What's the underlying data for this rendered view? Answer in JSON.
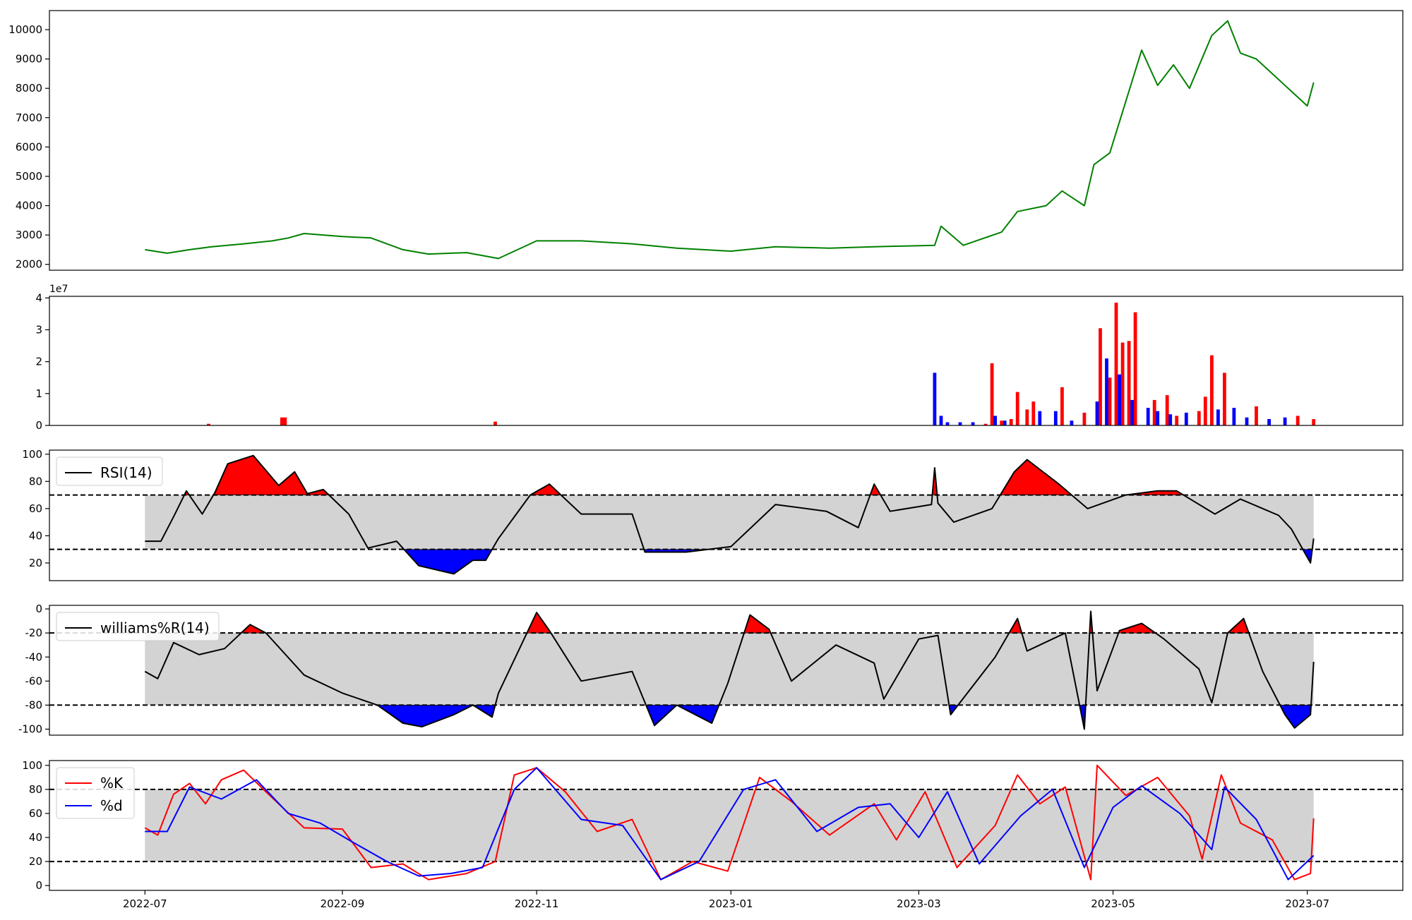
{
  "chart_data": [
    {
      "type": "line",
      "panel": "price",
      "x_range": [
        "2022-06-01",
        "2023-07-31"
      ],
      "ylim": [
        1800,
        10650
      ],
      "yticks": [
        2000,
        3000,
        4000,
        5000,
        6000,
        7000,
        8000,
        9000,
        10000
      ],
      "series": [
        {
          "color": "#008000",
          "x": [
            "2022-07-01",
            "2022-07-08",
            "2022-07-15",
            "2022-07-22",
            "2022-08-01",
            "2022-08-10",
            "2022-08-15",
            "2022-08-20",
            "2022-09-01",
            "2022-09-10",
            "2022-09-20",
            "2022-09-28",
            "2022-10-10",
            "2022-10-20",
            "2022-11-01",
            "2022-11-15",
            "2022-12-01",
            "2022-12-15",
            "2023-01-01",
            "2023-01-15",
            "2023-02-01",
            "2023-02-15",
            "2023-03-06",
            "2023-03-08",
            "2023-03-15",
            "2023-03-27",
            "2023-04-01",
            "2023-04-10",
            "2023-04-15",
            "2023-04-22",
            "2023-04-25",
            "2023-04-30",
            "2023-05-10",
            "2023-05-15",
            "2023-05-20",
            "2023-05-25",
            "2023-06-01",
            "2023-06-06",
            "2023-06-10",
            "2023-06-15",
            "2023-06-25",
            "2023-07-01",
            "2023-07-03"
          ],
          "y": [
            2500,
            2380,
            2500,
            2600,
            2700,
            2800,
            2900,
            3050,
            2950,
            2900,
            2500,
            2350,
            2400,
            2200,
            2800,
            2800,
            2700,
            2550,
            2450,
            2600,
            2550,
            2600,
            2650,
            3300,
            2650,
            3100,
            3800,
            4000,
            4500,
            4000,
            5400,
            5800,
            9300,
            8100,
            8800,
            8000,
            9800,
            10300,
            9200,
            9000,
            8000,
            7400,
            8200
          ]
        }
      ]
    },
    {
      "type": "bar",
      "panel": "volume",
      "x_range": [
        "2022-06-01",
        "2023-07-31"
      ],
      "ylim": [
        0,
        4.05
      ],
      "yticks": [
        0,
        1,
        2,
        3,
        4
      ],
      "scale_label": "1e7",
      "series": [
        {
          "color": "#ff0000",
          "x": [
            "2022-07-21",
            "2022-08-13",
            "2022-08-14",
            "2022-10-19",
            "2023-03-22",
            "2023-03-24",
            "2023-03-27",
            "2023-03-30",
            "2023-04-01",
            "2023-04-04",
            "2023-04-06",
            "2023-04-15",
            "2023-04-22",
            "2023-04-27",
            "2023-04-30",
            "2023-05-02",
            "2023-05-04",
            "2023-05-06",
            "2023-05-08",
            "2023-05-14",
            "2023-05-18",
            "2023-05-21",
            "2023-05-28",
            "2023-05-30",
            "2023-06-01",
            "2023-06-05",
            "2023-06-15",
            "2023-06-28",
            "2023-07-03"
          ],
          "y": [
            0.05,
            0.25,
            0.25,
            0.12,
            0.05,
            1.95,
            0.15,
            0.2,
            1.05,
            0.5,
            0.75,
            1.2,
            0.4,
            3.05,
            1.5,
            3.85,
            2.6,
            2.65,
            3.55,
            0.8,
            0.95,
            0.3,
            0.45,
            0.9,
            2.2,
            1.65,
            0.6,
            0.3,
            0.2
          ]
        },
        {
          "color": "#0000ff",
          "x": [
            "2023-03-06",
            "2023-03-08",
            "2023-03-10",
            "2023-03-14",
            "2023-03-18",
            "2023-03-25",
            "2023-03-28",
            "2023-04-08",
            "2023-04-13",
            "2023-04-18",
            "2023-04-26",
            "2023-04-29",
            "2023-05-03",
            "2023-05-07",
            "2023-05-12",
            "2023-05-15",
            "2023-05-19",
            "2023-05-24",
            "2023-06-03",
            "2023-06-08",
            "2023-06-12",
            "2023-06-19",
            "2023-06-24"
          ],
          "y": [
            1.65,
            0.3,
            0.1,
            0.1,
            0.1,
            0.3,
            0.15,
            0.45,
            0.45,
            0.15,
            0.75,
            2.1,
            1.6,
            0.8,
            0.55,
            0.45,
            0.35,
            0.4,
            0.5,
            0.55,
            0.25,
            0.2,
            0.25
          ]
        }
      ]
    },
    {
      "type": "line",
      "panel": "rsi",
      "x_range": [
        "2022-06-01",
        "2023-07-31"
      ],
      "ylim": [
        7,
        103
      ],
      "yticks": [
        20,
        40,
        60,
        80,
        100
      ],
      "upper": 70,
      "lower": 30,
      "band_color": "#d3d3d3",
      "overbought_color": "#ff0000",
      "oversold_color": "#0000ff",
      "legend": [
        "RSI(14)"
      ],
      "legend_loc": "upper left",
      "series": [
        {
          "name": "RSI(14)",
          "color": "#000000",
          "x": [
            "2022-07-01",
            "2022-07-06",
            "2022-07-10",
            "2022-07-14",
            "2022-07-19",
            "2022-07-23",
            "2022-07-27",
            "2022-08-04",
            "2022-08-12",
            "2022-08-17",
            "2022-08-21",
            "2022-08-26",
            "2022-09-03",
            "2022-09-09",
            "2022-09-18",
            "2022-09-25",
            "2022-10-06",
            "2022-10-12",
            "2022-10-16",
            "2022-10-20",
            "2022-10-30",
            "2022-11-05",
            "2022-11-15",
            "2022-12-01",
            "2022-12-05",
            "2022-12-18",
            "2023-01-01",
            "2023-01-15",
            "2023-01-31",
            "2023-02-10",
            "2023-02-15",
            "2023-02-20",
            "2023-03-05",
            "2023-03-06",
            "2023-03-07",
            "2023-03-12",
            "2023-03-24",
            "2023-03-31",
            "2023-04-04",
            "2023-04-14",
            "2023-04-23",
            "2023-05-05",
            "2023-05-15",
            "2023-05-21",
            "2023-06-02",
            "2023-06-10",
            "2023-06-22",
            "2023-06-26",
            "2023-07-02",
            "2023-07-03"
          ],
          "y": [
            36,
            36,
            54,
            73,
            56,
            72,
            93,
            99,
            77,
            87,
            71,
            74,
            56,
            31,
            36,
            18,
            12,
            22,
            22,
            38,
            70,
            78,
            56,
            56,
            28,
            28,
            32,
            63,
            58,
            46,
            78,
            58,
            63,
            90,
            64,
            50,
            60,
            87,
            96,
            78,
            60,
            70,
            73,
            73,
            56,
            67,
            55,
            45,
            20,
            38
          ]
        }
      ]
    },
    {
      "type": "line",
      "panel": "williams",
      "x_range": [
        "2022-06-01",
        "2023-07-31"
      ],
      "ylim": [
        -105,
        3
      ],
      "yticks": [
        -100,
        -80,
        -60,
        -40,
        -20,
        0
      ],
      "upper": -20,
      "lower": -80,
      "band_color": "#d3d3d3",
      "overbought_color": "#ff0000",
      "oversold_color": "#0000ff",
      "legend": [
        "williams%R(14)"
      ],
      "legend_loc": "upper left",
      "series": [
        {
          "name": "williams%R(14)",
          "color": "#000000",
          "x": [
            "2022-07-01",
            "2022-07-05",
            "2022-07-10",
            "2022-07-18",
            "2022-07-26",
            "2022-08-03",
            "2022-08-08",
            "2022-08-20",
            "2022-09-01",
            "2022-09-12",
            "2022-09-20",
            "2022-09-26",
            "2022-10-06",
            "2022-10-12",
            "2022-10-18",
            "2022-10-20",
            "2022-11-01",
            "2022-11-05",
            "2022-11-15",
            "2022-12-01",
            "2022-12-08",
            "2022-12-15",
            "2022-12-26",
            "2022-12-31",
            "2023-01-07",
            "2023-01-13",
            "2023-01-20",
            "2023-02-03",
            "2023-02-15",
            "2023-02-18",
            "2023-03-01",
            "2023-03-07",
            "2023-03-11",
            "2023-03-25",
            "2023-04-01",
            "2023-04-04",
            "2023-04-16",
            "2023-04-22",
            "2023-04-24",
            "2023-04-26",
            "2023-05-03",
            "2023-05-10",
            "2023-05-17",
            "2023-05-28",
            "2023-06-01",
            "2023-06-06",
            "2023-06-11",
            "2023-06-17",
            "2023-06-24",
            "2023-06-27",
            "2023-07-02",
            "2023-07-03"
          ],
          "y": [
            -52,
            -58,
            -28,
            -38,
            -33,
            -13,
            -20,
            -55,
            -70,
            -80,
            -95,
            -98,
            -88,
            -80,
            -90,
            -70,
            -3,
            -18,
            -60,
            -52,
            -97,
            -80,
            -95,
            -62,
            -5,
            -17,
            -60,
            -30,
            -45,
            -75,
            -25,
            -22,
            -88,
            -40,
            -8,
            -35,
            -20,
            -100,
            -2,
            -68,
            -18,
            -12,
            -25,
            -50,
            -78,
            -20,
            -8,
            -52,
            -88,
            -99,
            -88,
            -44
          ]
        }
      ]
    },
    {
      "type": "line",
      "panel": "stochastic",
      "x_range": [
        "2022-06-01",
        "2023-07-31"
      ],
      "ylim": [
        -4,
        104
      ],
      "yticks": [
        0,
        20,
        40,
        60,
        80,
        100
      ],
      "upper": 80,
      "lower": 20,
      "band_color": "#d3d3d3",
      "legend": [
        "%K",
        "%d"
      ],
      "legend_loc": "upper left",
      "series": [
        {
          "name": "%K",
          "color": "#ff0000",
          "x": [
            "2022-07-01",
            "2022-07-05",
            "2022-07-10",
            "2022-07-15",
            "2022-07-20",
            "2022-07-25",
            "2022-08-01",
            "2022-08-08",
            "2022-08-20",
            "2022-09-01",
            "2022-09-10",
            "2022-09-20",
            "2022-09-28",
            "2022-10-10",
            "2022-10-19",
            "2022-10-25",
            "2022-11-01",
            "2022-11-10",
            "2022-11-20",
            "2022-12-01",
            "2022-12-10",
            "2022-12-20",
            "2022-12-31",
            "2023-01-10",
            "2023-01-20",
            "2023-02-01",
            "2023-02-15",
            "2023-02-22",
            "2023-03-03",
            "2023-03-13",
            "2023-03-25",
            "2023-04-01",
            "2023-04-08",
            "2023-04-16",
            "2023-04-24",
            "2023-04-26",
            "2023-05-05",
            "2023-05-15",
            "2023-05-25",
            "2023-05-29",
            "2023-06-04",
            "2023-06-10",
            "2023-06-20",
            "2023-06-27",
            "2023-07-02",
            "2023-07-03"
          ],
          "y": [
            48,
            42,
            76,
            85,
            68,
            88,
            96,
            78,
            48,
            47,
            15,
            18,
            5,
            10,
            20,
            92,
            98,
            78,
            45,
            55,
            5,
            20,
            12,
            90,
            70,
            42,
            68,
            38,
            78,
            15,
            50,
            92,
            68,
            82,
            5,
            100,
            75,
            90,
            58,
            22,
            92,
            52,
            38,
            5,
            10,
            56
          ]
        },
        {
          "name": "%d",
          "color": "#0000ff",
          "x": [
            "2022-07-01",
            "2022-07-08",
            "2022-07-15",
            "2022-07-25",
            "2022-08-05",
            "2022-08-15",
            "2022-08-25",
            "2022-09-05",
            "2022-09-15",
            "2022-09-25",
            "2022-10-05",
            "2022-10-15",
            "2022-10-25",
            "2022-11-01",
            "2022-11-15",
            "2022-11-28",
            "2022-12-10",
            "2022-12-22",
            "2023-01-05",
            "2023-01-15",
            "2023-01-28",
            "2023-02-10",
            "2023-02-20",
            "2023-03-01",
            "2023-03-10",
            "2023-03-20",
            "2023-04-02",
            "2023-04-12",
            "2023-04-22",
            "2023-05-01",
            "2023-05-10",
            "2023-05-22",
            "2023-06-01",
            "2023-06-05",
            "2023-06-15",
            "2023-06-25",
            "2023-07-03"
          ],
          "y": [
            45,
            45,
            82,
            72,
            88,
            60,
            52,
            35,
            20,
            8,
            10,
            15,
            80,
            98,
            55,
            50,
            5,
            20,
            80,
            88,
            45,
            65,
            68,
            40,
            78,
            18,
            58,
            80,
            15,
            65,
            83,
            60,
            30,
            82,
            55,
            5,
            25
          ]
        }
      ]
    }
  ],
  "x_axis": {
    "tick_dates": [
      "2022-07-01",
      "2022-09-01",
      "2022-11-01",
      "2023-01-01",
      "2023-03-01",
      "2023-05-01",
      "2023-07-01"
    ],
    "tick_labels": [
      "2022-07",
      "2022-09",
      "2022-11",
      "2023-01",
      "2023-03",
      "2023-05",
      "2023-07"
    ]
  }
}
